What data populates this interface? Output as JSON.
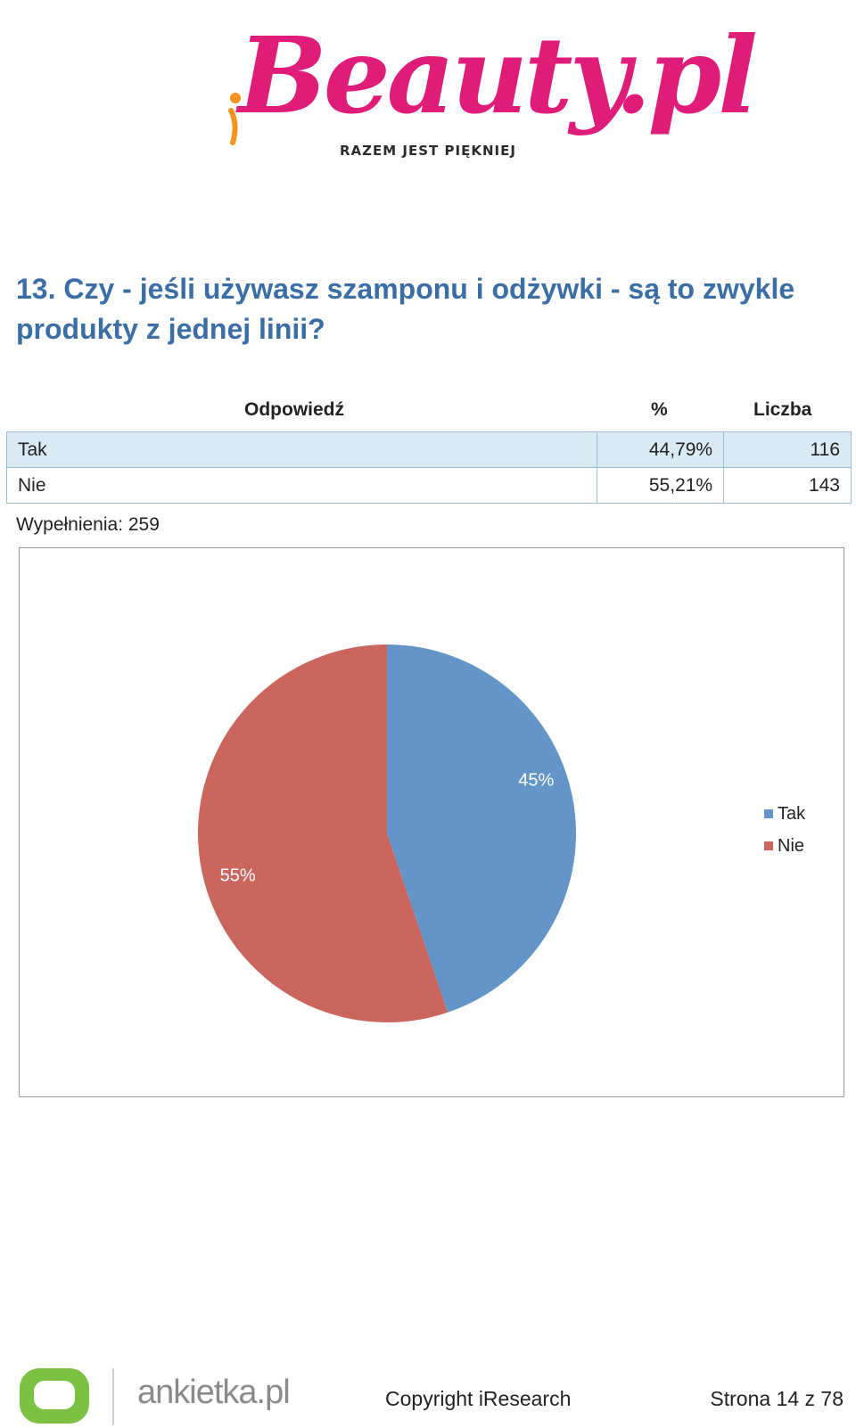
{
  "header": {
    "logo_wordmark": "iBeauty.pl",
    "logo_tagline": "RAZEM JEST PIĘKNIEJ"
  },
  "question": {
    "title": "13. Czy - jeśli używasz szamponu i odżywki - są to zwykle produkty z jednej linii?"
  },
  "table": {
    "columns": [
      "Odpowiedź",
      "%",
      "Liczba"
    ],
    "rows": [
      {
        "answer": "Tak",
        "percent": "44,79%",
        "count": "116"
      },
      {
        "answer": "Nie",
        "percent": "55,21%",
        "count": "143"
      }
    ],
    "filled_label": "Wypełnienia: 259"
  },
  "chart_data": {
    "type": "pie",
    "categories": [
      "Tak",
      "Nie"
    ],
    "values": [
      44.79,
      55.21
    ],
    "data_labels": [
      "45%",
      "55%"
    ],
    "colors": [
      "#6495c8",
      "#cb665f"
    ],
    "legend": [
      "Tak",
      "Nie"
    ],
    "legend_position": "right"
  },
  "footer": {
    "brand": "ankietka.pl",
    "copyright": "Copyright iResearch",
    "page": "Strona 14 z 78"
  }
}
